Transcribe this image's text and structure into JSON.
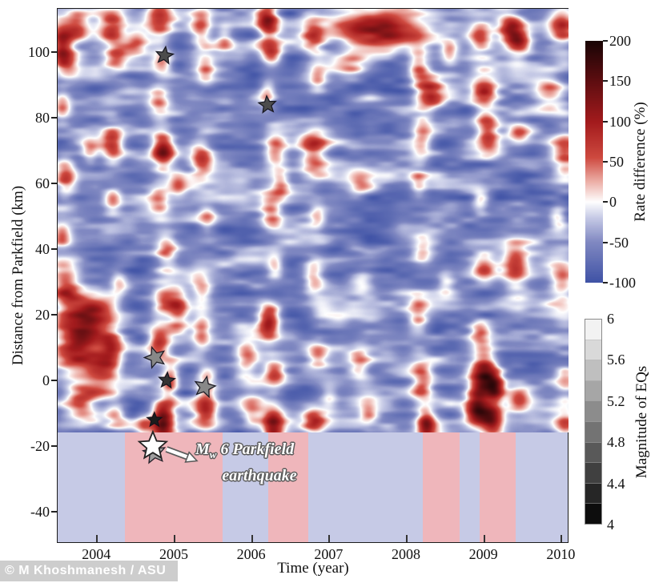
{
  "figure": {
    "watermark": "© M Khoshmanesh / ASU"
  },
  "chart_data": {
    "type": "heatmap",
    "xlabel": "Time (year)",
    "ylabel": "Distance from Parkfield (km)",
    "x_range": [
      2003.49,
      2010.1
    ],
    "y_range": [
      -49.5,
      113.5
    ],
    "heat_bottom_km": -15.9,
    "x_ticks": [
      "2004",
      "2005",
      "2006",
      "2007",
      "2008",
      "2009",
      "2010"
    ],
    "x_tick_values": [
      2004,
      2005,
      2006,
      2007,
      2008,
      2009,
      2010
    ],
    "y_ticks": [
      "100",
      "80",
      "60",
      "40",
      "20",
      "0",
      "-20",
      "-40"
    ],
    "y_tick_values": [
      100,
      80,
      60,
      40,
      20,
      0,
      -20,
      -40
    ],
    "colorbar_rate": {
      "label": "Rate difference (%)",
      "ticks": [
        "200",
        "150",
        "100",
        "50",
        "0",
        "-50",
        "-100"
      ],
      "tick_values": [
        200,
        150,
        100,
        50,
        0,
        -50,
        -100
      ],
      "range": [
        -100,
        200
      ],
      "stops": [
        [
          -100,
          "#4053a6"
        ],
        [
          -50,
          "#8189c2"
        ],
        [
          -20,
          "#c6cae6"
        ],
        [
          0,
          "#ffffff"
        ],
        [
          25,
          "#edb0a8"
        ],
        [
          55,
          "#cf4a40"
        ],
        [
          100,
          "#a31b1d"
        ],
        [
          150,
          "#5f0e11"
        ],
        [
          200,
          "#1a0506"
        ]
      ]
    },
    "colorbar_magnitude": {
      "label": "Magnitude of EQs",
      "ticks": [
        "6",
        "5.6",
        "5.2",
        "4.8",
        "4.4",
        "4"
      ],
      "tick_values": [
        6,
        5.6,
        5.2,
        4.8,
        4.4,
        4
      ],
      "range": [
        4,
        6
      ],
      "cells": 10
    },
    "band": {
      "colors": {
        "pink": "#efb6bb",
        "blue": "#c6cae6"
      },
      "stripes": [
        {
          "from": 2003.49,
          "to": 2004.36,
          "color": "blue"
        },
        {
          "from": 2004.36,
          "to": 2005.62,
          "color": "pink"
        },
        {
          "from": 2005.62,
          "to": 2006.21,
          "color": "blue"
        },
        {
          "from": 2006.21,
          "to": 2006.73,
          "color": "pink"
        },
        {
          "from": 2006.73,
          "to": 2008.21,
          "color": "blue"
        },
        {
          "from": 2008.21,
          "to": 2008.68,
          "color": "pink"
        },
        {
          "from": 2008.68,
          "to": 2008.94,
          "color": "blue"
        },
        {
          "from": 2008.94,
          "to": 2009.41,
          "color": "pink"
        },
        {
          "from": 2009.41,
          "to": 2010.1,
          "color": "blue"
        }
      ]
    },
    "earthquakes": [
      {
        "t": 2004.88,
        "d": 99,
        "m": 4.5,
        "rot": 8
      },
      {
        "t": 2006.21,
        "d": 84,
        "m": 4.5,
        "rot": -5
      },
      {
        "t": 2004.76,
        "d": 7,
        "m": 5.0,
        "rot": -18
      },
      {
        "t": 2004.91,
        "d": 0,
        "m": 4.3,
        "rot": 5
      },
      {
        "t": 2005.4,
        "d": -2,
        "m": 5.0,
        "rot": 12
      },
      {
        "t": 2004.75,
        "d": -12,
        "m": 4.1,
        "rot": 0
      },
      {
        "t": 2004.75,
        "d": -22,
        "m": 5.2,
        "rot": -8
      },
      {
        "t": 2004.73,
        "d": -20,
        "m": 6.0,
        "rot": 0
      }
    ],
    "annotation": {
      "m": "M",
      "sub": "w",
      "rest": " 6 Parkfield",
      "line2": "earthquake"
    },
    "field": {
      "base": -52,
      "noise_amp": 58,
      "seed": 7,
      "blobs": [
        [
          2003.55,
          103,
          150,
          0.1,
          4
        ],
        [
          2003.6,
          96,
          110,
          0.12,
          3
        ],
        [
          2003.55,
          84,
          85,
          0.08,
          3
        ],
        [
          2003.6,
          62,
          115,
          0.1,
          4
        ],
        [
          2003.55,
          45,
          75,
          0.08,
          3
        ],
        [
          2003.6,
          28,
          110,
          0.12,
          5
        ],
        [
          2003.75,
          108,
          100,
          0.1,
          3
        ],
        [
          2003.9,
          70,
          70,
          0.08,
          3
        ],
        [
          2003.9,
          19,
          170,
          0.22,
          5
        ],
        [
          2003.7,
          9,
          130,
          0.2,
          6
        ],
        [
          2004.05,
          3,
          120,
          0.15,
          5
        ],
        [
          2003.8,
          -7,
          115,
          0.15,
          4
        ],
        [
          2004.2,
          108,
          120,
          0.12,
          4
        ],
        [
          2004.25,
          99,
          85,
          0.1,
          3
        ],
        [
          2004.2,
          72,
          130,
          0.1,
          4
        ],
        [
          2004.2,
          55,
          80,
          0.08,
          3
        ],
        [
          2004.28,
          30,
          75,
          0.08,
          3
        ],
        [
          2004.2,
          10,
          100,
          0.1,
          4
        ],
        [
          2004.25,
          -10,
          90,
          0.1,
          3
        ],
        [
          2004.5,
          104,
          90,
          0.1,
          3
        ],
        [
          2004.6,
          -14,
          80,
          0.08,
          3
        ],
        [
          2004.8,
          110,
          130,
          0.12,
          4
        ],
        [
          2004.85,
          97,
          105,
          0.1,
          3
        ],
        [
          2004.8,
          85,
          95,
          0.1,
          3
        ],
        [
          2004.85,
          70,
          185,
          0.1,
          4
        ],
        [
          2004.8,
          55,
          90,
          0.1,
          3
        ],
        [
          2004.9,
          40,
          100,
          0.1,
          4
        ],
        [
          2004.85,
          25,
          105,
          0.1,
          3
        ],
        [
          2004.8,
          12,
          125,
          0.1,
          4
        ],
        [
          2004.95,
          0,
          135,
          0.08,
          3.5
        ],
        [
          2004.85,
          -12,
          200,
          0.1,
          4
        ],
        [
          2005.05,
          60,
          80,
          0.08,
          3
        ],
        [
          2005.05,
          22,
          120,
          0.1,
          4
        ],
        [
          2005.35,
          108,
          115,
          0.1,
          4
        ],
        [
          2005.4,
          95,
          80,
          0.08,
          3
        ],
        [
          2005.35,
          68,
          115,
          0.1,
          4
        ],
        [
          2005.42,
          50,
          70,
          0.08,
          3
        ],
        [
          2005.35,
          28,
          90,
          0.1,
          4
        ],
        [
          2005.35,
          15,
          85,
          0.08,
          4
        ],
        [
          2005.42,
          0,
          100,
          0.1,
          4
        ],
        [
          2005.4,
          -9,
          115,
          0.1,
          4
        ],
        [
          2005.65,
          105,
          80,
          0.08,
          3
        ],
        [
          2005.95,
          8,
          85,
          0.1,
          4
        ],
        [
          2006.0,
          -10,
          95,
          0.1,
          4
        ],
        [
          2006.2,
          110,
          160,
          0.1,
          4
        ],
        [
          2006.25,
          100,
          115,
          0.1,
          3
        ],
        [
          2006.2,
          88,
          85,
          0.08,
          3
        ],
        [
          2006.3,
          70,
          110,
          0.1,
          4
        ],
        [
          2006.25,
          52,
          100,
          0.1,
          4
        ],
        [
          2006.3,
          35,
          90,
          0.08,
          3
        ],
        [
          2006.22,
          18,
          170,
          0.1,
          4
        ],
        [
          2006.3,
          2,
          110,
          0.1,
          3
        ],
        [
          2006.27,
          -13,
          185,
          0.1,
          4
        ],
        [
          2006.38,
          60,
          80,
          0.08,
          3
        ],
        [
          2006.8,
          105,
          100,
          0.1,
          4
        ],
        [
          2006.85,
          92,
          80,
          0.08,
          3
        ],
        [
          2006.8,
          70,
          110,
          0.12,
          5
        ],
        [
          2006.85,
          50,
          80,
          0.08,
          3
        ],
        [
          2006.8,
          32,
          100,
          0.1,
          4
        ],
        [
          2006.85,
          8,
          90,
          0.1,
          3
        ],
        [
          2006.8,
          -12,
          115,
          0.1,
          3
        ],
        [
          2007.5,
          108,
          140,
          0.45,
          3.5
        ],
        [
          2007.9,
          104,
          100,
          0.3,
          3
        ],
        [
          2007.3,
          96,
          80,
          0.15,
          3
        ],
        [
          2007.4,
          60,
          60,
          0.1,
          3
        ],
        [
          2007.45,
          30,
          65,
          0.1,
          3
        ],
        [
          2007.4,
          5,
          75,
          0.1,
          4
        ],
        [
          2007.5,
          -10,
          60,
          0.08,
          3
        ],
        [
          2007.0,
          -5,
          65,
          0.08,
          3
        ],
        [
          2008.15,
          95,
          110,
          0.1,
          4
        ],
        [
          2008.2,
          75,
          100,
          0.1,
          4
        ],
        [
          2008.15,
          60,
          80,
          0.08,
          3
        ],
        [
          2008.2,
          40,
          90,
          0.1,
          4
        ],
        [
          2008.15,
          20,
          100,
          0.1,
          4
        ],
        [
          2008.2,
          0,
          120,
          0.1,
          4
        ],
        [
          2008.25,
          -13,
          165,
          0.08,
          3
        ],
        [
          2008.3,
          88,
          125,
          0.12,
          4
        ],
        [
          2008.55,
          100,
          85,
          0.08,
          3
        ],
        [
          2008.5,
          30,
          60,
          0.08,
          3
        ],
        [
          2008.95,
          105,
          110,
          0.1,
          3
        ],
        [
          2009.0,
          88,
          150,
          0.12,
          4
        ],
        [
          2009.05,
          75,
          120,
          0.1,
          4
        ],
        [
          2008.95,
          55,
          80,
          0.08,
          3
        ],
        [
          2009.0,
          35,
          90,
          0.1,
          3
        ],
        [
          2008.95,
          15,
          100,
          0.1,
          3
        ],
        [
          2009.0,
          2,
          200,
          0.12,
          5
        ],
        [
          2008.9,
          -8,
          180,
          0.1,
          4
        ],
        [
          2009.1,
          -12,
          160,
          0.1,
          4
        ],
        [
          2009.15,
          -2,
          140,
          0.08,
          3
        ],
        [
          2009.3,
          108,
          90,
          0.1,
          3
        ],
        [
          2009.4,
          105,
          115,
          0.1,
          4
        ],
        [
          2009.45,
          75,
          90,
          0.1,
          3
        ],
        [
          2009.4,
          35,
          100,
          0.12,
          5
        ],
        [
          2009.45,
          -5,
          90,
          0.1,
          3
        ],
        [
          2009.5,
          103,
          85,
          0.1,
          3
        ],
        [
          2009.85,
          88,
          100,
          0.15,
          4
        ],
        [
          2010.0,
          108,
          120,
          0.12,
          4
        ],
        [
          2010.05,
          70,
          110,
          0.12,
          5
        ],
        [
          2010.0,
          30,
          100,
          0.12,
          5
        ],
        [
          2010.05,
          0,
          90,
          0.1,
          4
        ],
        [
          2009.95,
          50,
          80,
          0.08,
          3
        ],
        [
          2010.05,
          -14,
          90,
          0.1,
          4
        ]
      ]
    }
  }
}
